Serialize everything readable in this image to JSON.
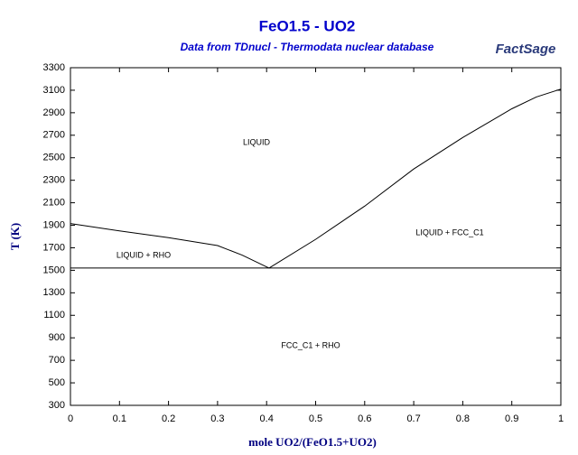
{
  "chart_data": {
    "type": "line",
    "title": "FeO1.5 - UO2",
    "subtitle": "Data from TDnucl - Thermodata nuclear database",
    "logo": "FactSage",
    "x_label": "mole UO2/(FeO1.5+UO2)",
    "y_label": "T (K)",
    "annotations": [
      "LIQUID",
      "LIQUID + RHO",
      "LIQUID + FCC_C1",
      "FCC_C1 + RHO"
    ],
    "xlim": [
      0,
      1
    ],
    "xticks": [
      0,
      0.1,
      0.2,
      0.3,
      0.4,
      0.5,
      0.6,
      0.7,
      0.8,
      0.9,
      1
    ],
    "ylim": [
      300,
      3300
    ],
    "yticks": [
      300,
      500,
      700,
      900,
      1100,
      1300,
      1500,
      1700,
      1900,
      2100,
      2300,
      2500,
      2700,
      2900,
      3100,
      3300
    ],
    "series": [
      {
        "color": "#000000",
        "x": [
          0,
          0.1,
          0.2,
          0.3,
          0.35,
          0.405
        ],
        "values": [
          1915,
          1850,
          1790,
          1720,
          1635,
          1520
        ]
      },
      {
        "color": "#000000",
        "x": [
          0.405,
          0.5,
          0.6,
          0.7,
          0.8,
          0.9,
          0.95,
          1
        ],
        "values": [
          1520,
          1775,
          2070,
          2400,
          2680,
          2935,
          3040,
          3110
        ]
      },
      {
        "color": "#000000",
        "x": [
          0,
          1
        ],
        "values": [
          1520,
          1520
        ]
      }
    ]
  }
}
